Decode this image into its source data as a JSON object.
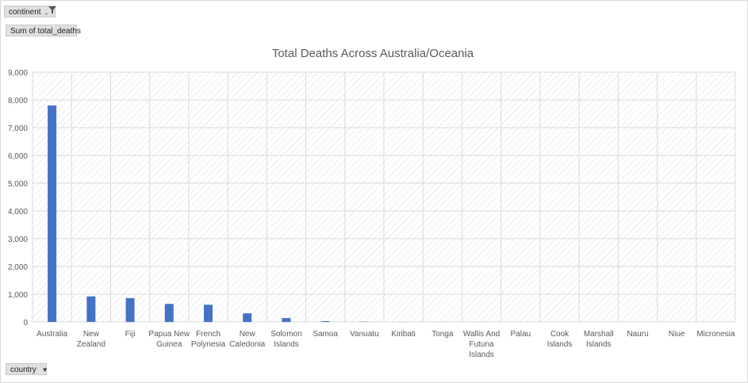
{
  "pivot": {
    "filter_label": "continent",
    "value_label": "Sum of total_deaths",
    "axis_field_label": "country"
  },
  "colors": {
    "bar": "#4472C4",
    "grid": "#d9d9d9",
    "pattern": "#e3e3e3"
  },
  "chart_data": {
    "type": "bar",
    "title": "Total Deaths Across Australia/Oceania",
    "xlabel": "",
    "ylabel": "",
    "ylim": [
      0,
      9000
    ],
    "yticks": [
      0,
      1000,
      2000,
      3000,
      4000,
      5000,
      6000,
      7000,
      8000,
      9000
    ],
    "ytick_labels": [
      "0",
      "1,000",
      "2,000",
      "3,000",
      "4,000",
      "5,000",
      "6,000",
      "7,000",
      "8,000",
      "9,000"
    ],
    "grid": true,
    "categories": [
      [
        "Australia"
      ],
      [
        "New",
        "Zealand"
      ],
      [
        "Fiji"
      ],
      [
        "Papua New",
        "Guinea"
      ],
      [
        "French",
        "Polynesia"
      ],
      [
        "New",
        "Caledonia"
      ],
      [
        "Solomon",
        "Islands"
      ],
      [
        "Samoa"
      ],
      [
        "Vanuatu"
      ],
      [
        "Kiribati"
      ],
      [
        "Tonga"
      ],
      [
        "Wallis And",
        "Futuna",
        "Islands"
      ],
      [
        "Palau"
      ],
      [
        "Cook",
        "Islands"
      ],
      [
        "Marshall",
        "Islands"
      ],
      [
        "Nauru"
      ],
      [
        "Niue"
      ],
      [
        "Micronesia"
      ]
    ],
    "values": [
      7800,
      920,
      860,
      650,
      620,
      310,
      140,
      30,
      10,
      3,
      2,
      1,
      0,
      0,
      0,
      0,
      0,
      0
    ]
  }
}
